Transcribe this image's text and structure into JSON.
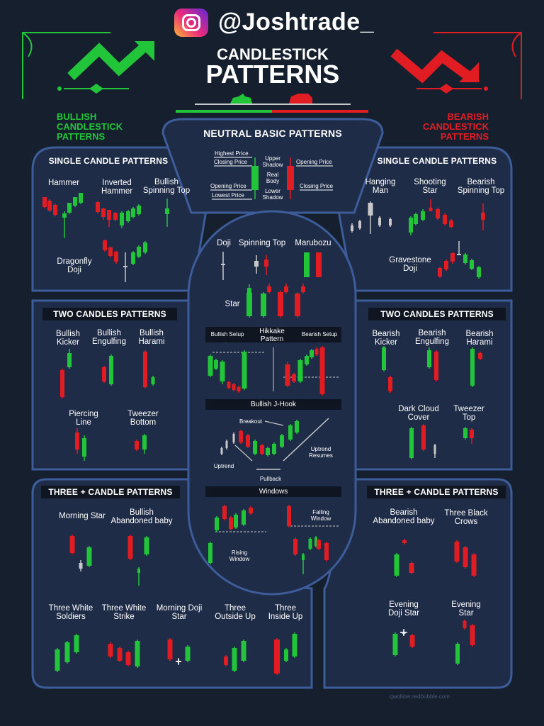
{
  "handle": "@Joshtrade_",
  "icons": {
    "social": "instagram-icon",
    "bull": "bull-icon",
    "bear": "bear-icon"
  },
  "colors": {
    "background": "#161f2e",
    "panel": "#1f2c47",
    "border": "#3d5d9a",
    "bullish": "#22c43a",
    "bearish": "#e21c23",
    "neutral": "#c8c8c8"
  },
  "title": {
    "line1": "CANDLESTICK",
    "line2": "PATTERNS"
  },
  "bullish_label": "BULLISH\nCANDLESTICK\nPATTERNS",
  "bearish_label": "BEARISH\nCANDLESTICK\nPATTERNS",
  "neutral": {
    "header": "NEUTRAL BASIC PATTERNS",
    "labels": {
      "highest_price": "Highest Price",
      "closing_price_left": "Closing Price",
      "opening_price_left": "Opening Price",
      "lowest_price": "Lowest Price",
      "upper_shadow": "Upper\nShadow",
      "real_body": "Real\nBody",
      "lower_shadow": "Lower\nShadow",
      "opening_price_right": "Opening Price",
      "closing_price_right": "Closing Price"
    }
  },
  "bullish": {
    "single": {
      "header": "SINGLE CANDLE PATTERNS",
      "items": [
        "Hammer",
        "Inverted\nHammer",
        "Bullish\nSpinning Top",
        "Dragonfly\nDoji"
      ]
    },
    "two": {
      "header": "TWO CANDLES PATTERNS",
      "items": [
        "Bullish\nKicker",
        "Bullish\nEngulfing",
        "Bullish\nHarami",
        "Piercing\nLine",
        "Tweezer\nBottom"
      ]
    },
    "three": {
      "header": "THREE + CANDLE PATTERNS",
      "items": [
        "Morning Star",
        "Bullish\nAbandoned baby",
        "Three White\nSoldiers",
        "Three White\nStrike",
        "Morning Doji\nStar",
        "Three\nOutside Up",
        "Three\nInside Up"
      ]
    }
  },
  "bearish": {
    "single": {
      "header": "SINGLE CANDLE PATTERNS",
      "items": [
        "Hanging\nMan",
        "Shooting\nStar",
        "Bearish\nSpinning Top",
        "Gravestone\nDoji"
      ]
    },
    "two": {
      "header": "TWO CANDLES PATTERNS",
      "items": [
        "Bearish\nKicker",
        "Bearish\nEngulfing",
        "Bearish\nHarami",
        "Dark Cloud\nCover",
        "Tweezer\nTop"
      ]
    },
    "three": {
      "header": "THREE + CANDLE PATTERNS",
      "items": [
        "Bearish\nAbandoned baby",
        "Three Black\nCrows",
        "Evening\nDoji Star",
        "Evening\nStar"
      ]
    }
  },
  "center": {
    "items": [
      "Doji",
      "Spinning Top",
      "Marubozu",
      "Star"
    ],
    "hikkake": {
      "title": "Hikkake\nPattern",
      "bullish_setup": "Bullish Setup",
      "bearish_setup": "Bearish Setup"
    },
    "jhook": {
      "header": "Bullish J-Hook",
      "breakout": "Breakout",
      "uptrend": "Uptrend",
      "pullback": "Pullback",
      "uptrend_resumes": "Uptrend\nResumes"
    },
    "windows": {
      "header": "Windows",
      "falling": "Falling\nWindow",
      "rising": "Rising\nWindow"
    }
  },
  "credit": "qwofster.redbubble.com"
}
